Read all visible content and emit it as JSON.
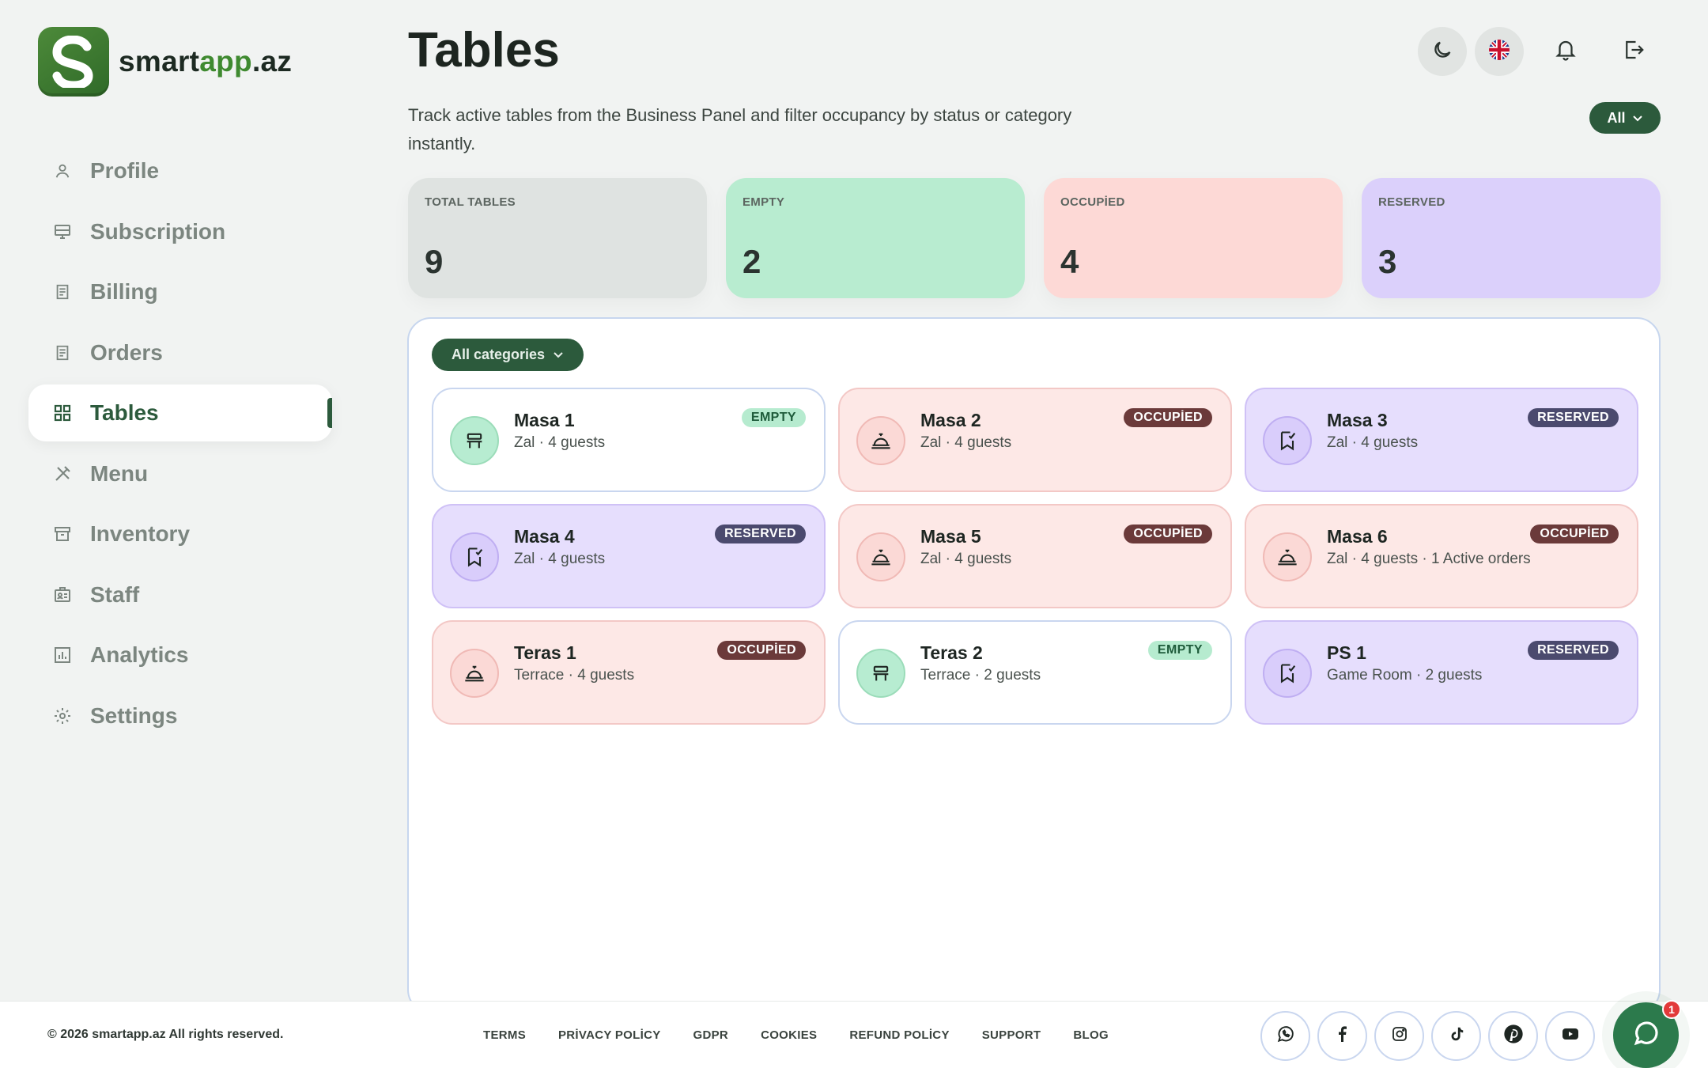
{
  "brand": {
    "name_part1": "smart",
    "name_part2": "app",
    "name_part3": ".az",
    "logo_letter": "S",
    "accent_color": "#2c5a3c"
  },
  "sidebar": {
    "items": [
      {
        "label": "Profile",
        "icon": "user-icon"
      },
      {
        "label": "Subscription",
        "icon": "subscription-icon"
      },
      {
        "label": "Billing",
        "icon": "receipt-icon"
      },
      {
        "label": "Orders",
        "icon": "receipt-icon"
      },
      {
        "label": "Tables",
        "icon": "grid-icon",
        "active": true
      },
      {
        "label": "Menu",
        "icon": "utensils-icon"
      },
      {
        "label": "Inventory",
        "icon": "archive-icon"
      },
      {
        "label": "Staff",
        "icon": "id-card-icon"
      },
      {
        "label": "Analytics",
        "icon": "chart-icon"
      },
      {
        "label": "Settings",
        "icon": "gear-icon"
      }
    ]
  },
  "header": {
    "title": "Tables",
    "subtitle": "Track active tables from the Business Panel and filter occupancy by status or category instantly.",
    "status_filter": "All"
  },
  "stats": {
    "total": {
      "label": "TOTAL TABLES",
      "value": "9"
    },
    "empty": {
      "label": "EMPTY",
      "value": "2"
    },
    "occupied": {
      "label": "OCCUPİED",
      "value": "4"
    },
    "reserved": {
      "label": "RESERVED",
      "value": "3"
    }
  },
  "category_filter": "All categories",
  "tables": [
    {
      "name": "Masa 1",
      "details": "Zal · 4 guests",
      "status": "EMPTY",
      "status_key": "empty"
    },
    {
      "name": "Masa 2",
      "details": "Zal · 4 guests",
      "status": "OCCUPİED",
      "status_key": "occupied"
    },
    {
      "name": "Masa 3",
      "details": "Zal · 4 guests",
      "status": "RESERVED",
      "status_key": "reserved"
    },
    {
      "name": "Masa 4",
      "details": "Zal · 4 guests",
      "status": "RESERVED",
      "status_key": "reserved"
    },
    {
      "name": "Masa 5",
      "details": "Zal · 4 guests",
      "status": "OCCUPİED",
      "status_key": "occupied"
    },
    {
      "name": "Masa 6",
      "details": "Zal · 4 guests · 1 Active orders",
      "status": "OCCUPİED",
      "status_key": "occupied"
    },
    {
      "name": "Teras 1",
      "details": "Terrace · 4 guests",
      "status": "OCCUPİED",
      "status_key": "occupied"
    },
    {
      "name": "Teras 2",
      "details": "Terrace · 2 guests",
      "status": "EMPTY",
      "status_key": "empty"
    },
    {
      "name": "PS 1",
      "details": "Game Room · 2 guests",
      "status": "RESERVED",
      "status_key": "reserved"
    }
  ],
  "footer": {
    "copyright": "© 2026 smartapp.az All rights reserved.",
    "links": [
      "TERMS",
      "PRİVACY POLİCY",
      "GDPR",
      "COOKIES",
      "REFUND POLİCY",
      "SUPPORT",
      "BLOG"
    ],
    "socials": [
      "whatsapp-icon",
      "facebook-icon",
      "instagram-icon",
      "tiktok-icon",
      "pinterest-icon",
      "youtube-icon"
    ]
  },
  "chat": {
    "badge_count": "1"
  }
}
